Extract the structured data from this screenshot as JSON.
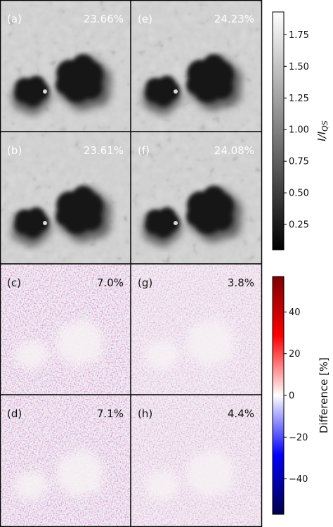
{
  "panels": [
    {
      "id": "a",
      "label": "(a)",
      "value": "23.66%",
      "kind": "intensity"
    },
    {
      "id": "e",
      "label": "(e)",
      "value": "24.23%",
      "kind": "intensity"
    },
    {
      "id": "b",
      "label": "(b)",
      "value": "23.61%",
      "kind": "intensity"
    },
    {
      "id": "f",
      "label": "(f)",
      "value": "24.08%",
      "kind": "intensity"
    },
    {
      "id": "c",
      "label": "(c)",
      "value": "7.0%",
      "kind": "difference",
      "amplitude": 0.8
    },
    {
      "id": "g",
      "label": "(g)",
      "value": "3.8%",
      "kind": "difference",
      "amplitude": 0.4
    },
    {
      "id": "d",
      "label": "(d)",
      "value": "7.1%",
      "kind": "difference",
      "amplitude": 0.8
    },
    {
      "id": "h",
      "label": "(h)",
      "value": "4.4%",
      "kind": "difference",
      "amplitude": 0.45
    }
  ],
  "colorbars": {
    "intensity": {
      "label": "I/I_QS",
      "label_main": "I/I",
      "label_sub": "QS",
      "range": [
        0.05,
        1.93
      ],
      "ticks": [
        "0.25",
        "0.50",
        "0.75",
        "1.00",
        "1.25",
        "1.50",
        "1.75"
      ],
      "tick_values": [
        0.25,
        0.5,
        0.75,
        1.0,
        1.25,
        1.5,
        1.75
      ],
      "colormap": "gray"
    },
    "difference": {
      "label": "Difference [%]",
      "range": [
        -57,
        57
      ],
      "ticks": [
        "−40",
        "−20",
        "0",
        "20",
        "40"
      ],
      "tick_values": [
        -40,
        -20,
        0,
        20,
        40
      ],
      "colormap": "seismic"
    }
  }
}
